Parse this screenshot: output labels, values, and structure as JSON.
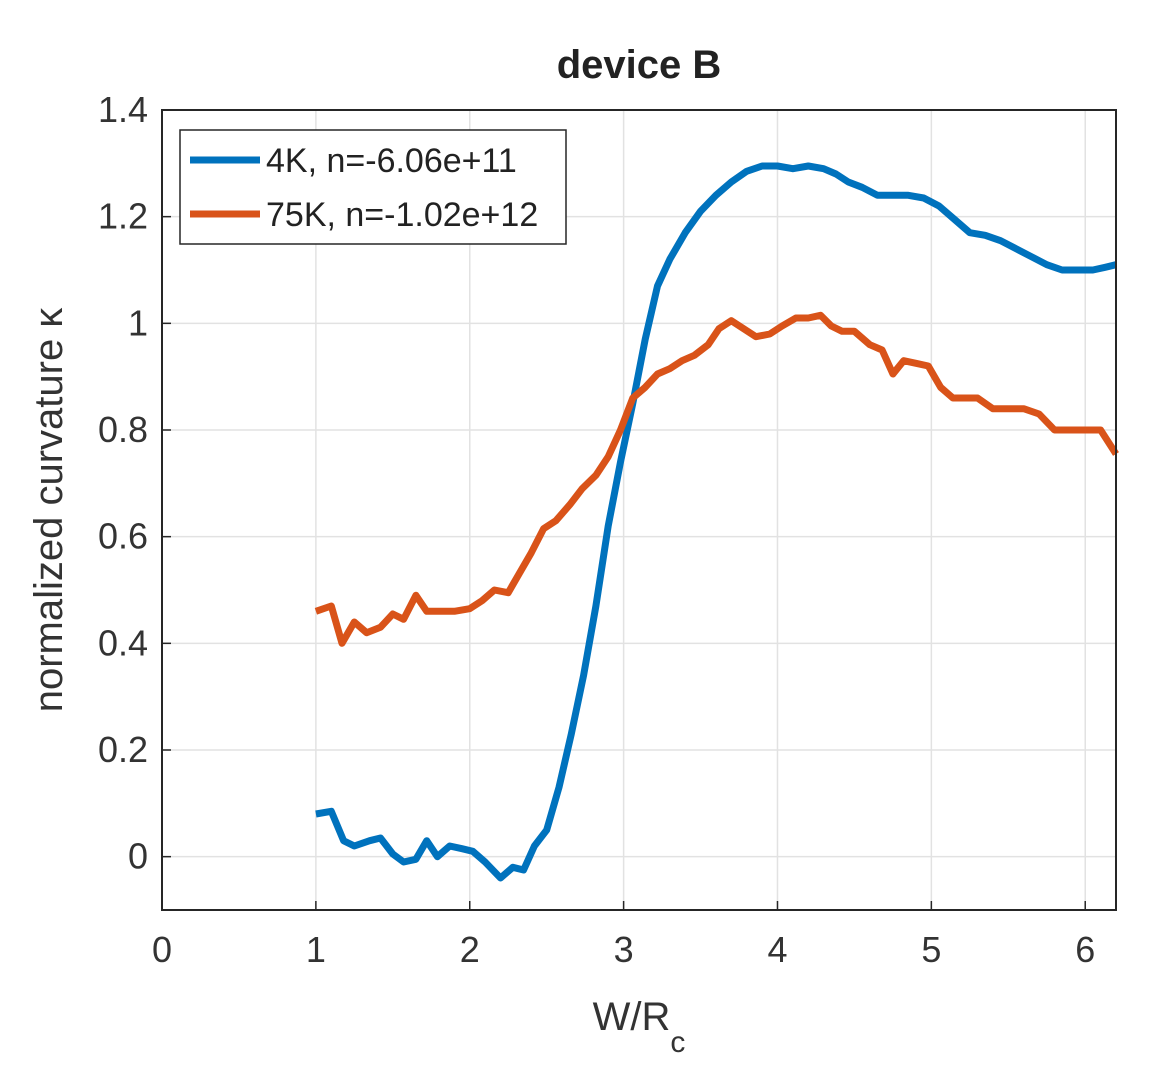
{
  "chart_data": {
    "type": "line",
    "title": "device B",
    "xlabel": "W/R",
    "xlabel_sub": "c",
    "ylabel": "normalized curvature κ",
    "xlim": [
      0,
      6.2
    ],
    "ylim": [
      -0.1,
      1.4
    ],
    "xticks": [
      "0",
      "1",
      "2",
      "3",
      "4",
      "5",
      "6"
    ],
    "yticks": [
      "0",
      "0.2",
      "0.4",
      "0.6",
      "0.8",
      "1",
      "1.2",
      "1.4"
    ],
    "grid": true,
    "legend_position": "top-left",
    "series": [
      {
        "name": "4K, n=-6.06e+11",
        "color": "#0072BD",
        "x": [
          1.0,
          1.1,
          1.18,
          1.25,
          1.35,
          1.42,
          1.5,
          1.57,
          1.65,
          1.72,
          1.79,
          1.87,
          1.95,
          2.02,
          2.1,
          2.2,
          2.28,
          2.35,
          2.42,
          2.5,
          2.58,
          2.66,
          2.74,
          2.82,
          2.9,
          2.98,
          3.06,
          3.14,
          3.22,
          3.3,
          3.4,
          3.5,
          3.6,
          3.7,
          3.8,
          3.9,
          4.0,
          4.1,
          4.2,
          4.3,
          4.38,
          4.46,
          4.55,
          4.65,
          4.75,
          4.85,
          4.95,
          5.05,
          5.15,
          5.25,
          5.35,
          5.45,
          5.55,
          5.65,
          5.75,
          5.85,
          5.95,
          6.05,
          6.13,
          6.2
        ],
        "values": [
          0.08,
          0.085,
          0.03,
          0.02,
          0.03,
          0.035,
          0.005,
          -0.01,
          -0.005,
          0.03,
          0.0,
          0.02,
          0.015,
          0.01,
          -0.01,
          -0.04,
          -0.02,
          -0.025,
          0.02,
          0.05,
          0.13,
          0.23,
          0.34,
          0.47,
          0.62,
          0.74,
          0.85,
          0.97,
          1.07,
          1.12,
          1.17,
          1.21,
          1.24,
          1.265,
          1.285,
          1.295,
          1.295,
          1.29,
          1.295,
          1.29,
          1.28,
          1.265,
          1.255,
          1.24,
          1.24,
          1.24,
          1.235,
          1.22,
          1.195,
          1.17,
          1.165,
          1.155,
          1.14,
          1.125,
          1.11,
          1.1,
          1.1,
          1.1,
          1.105,
          1.11
        ]
      },
      {
        "name": "75K, n=-1.02e+12",
        "color": "#D95319",
        "x": [
          1.0,
          1.1,
          1.17,
          1.25,
          1.33,
          1.42,
          1.5,
          1.57,
          1.65,
          1.72,
          1.8,
          1.9,
          2.0,
          2.08,
          2.16,
          2.25,
          2.32,
          2.4,
          2.48,
          2.56,
          2.65,
          2.73,
          2.82,
          2.9,
          2.98,
          3.06,
          3.14,
          3.22,
          3.3,
          3.38,
          3.46,
          3.55,
          3.62,
          3.7,
          3.78,
          3.86,
          3.95,
          4.03,
          4.12,
          4.2,
          4.28,
          4.35,
          4.42,
          4.5,
          4.6,
          4.68,
          4.75,
          4.82,
          4.9,
          4.98,
          5.06,
          5.14,
          5.22,
          5.3,
          5.4,
          5.5,
          5.6,
          5.7,
          5.8,
          5.9,
          6.0,
          6.1,
          6.2
        ],
        "values": [
          0.46,
          0.47,
          0.4,
          0.44,
          0.42,
          0.43,
          0.455,
          0.445,
          0.49,
          0.46,
          0.46,
          0.46,
          0.465,
          0.48,
          0.5,
          0.495,
          0.53,
          0.57,
          0.615,
          0.63,
          0.66,
          0.69,
          0.715,
          0.75,
          0.8,
          0.86,
          0.88,
          0.905,
          0.915,
          0.93,
          0.94,
          0.96,
          0.99,
          1.005,
          0.99,
          0.975,
          0.98,
          0.995,
          1.01,
          1.01,
          1.015,
          0.995,
          0.985,
          0.985,
          0.96,
          0.95,
          0.905,
          0.93,
          0.925,
          0.92,
          0.88,
          0.86,
          0.86,
          0.86,
          0.84,
          0.84,
          0.84,
          0.83,
          0.8,
          0.8,
          0.8,
          0.8,
          0.755
        ]
      }
    ]
  }
}
